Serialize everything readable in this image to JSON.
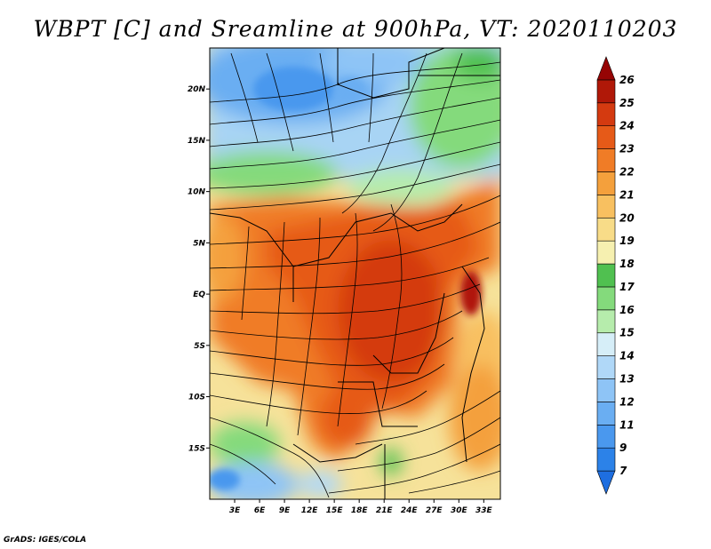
{
  "title": "WBPT [C] and Sreamline at 900hPa, VT: 2020110203",
  "credit": "GrADS: IGES/COLA",
  "map": {
    "lon_ticks": [
      "3E",
      "6E",
      "9E",
      "12E",
      "15E",
      "18E",
      "21E",
      "24E",
      "27E",
      "30E",
      "33E"
    ],
    "lon_values": [
      3,
      6,
      9,
      12,
      15,
      18,
      21,
      24,
      27,
      30,
      33
    ],
    "lat_ticks": [
      "20N",
      "15N",
      "10N",
      "5N",
      "EQ",
      "5S",
      "10S",
      "15S"
    ],
    "lat_values": [
      20,
      15,
      10,
      5,
      0,
      -5,
      -10,
      -15
    ],
    "lon_range": [
      0,
      35
    ],
    "lat_range": [
      -20,
      24
    ]
  },
  "colorbar": {
    "labels": [
      "7",
      "9",
      "11",
      "12",
      "13",
      "14",
      "15",
      "16",
      "17",
      "18",
      "19",
      "20",
      "21",
      "22",
      "23",
      "24",
      "25",
      "26"
    ],
    "colors": [
      "#1e6ee0",
      "#2c82e8",
      "#4a98ee",
      "#6aaef2",
      "#8ec4f6",
      "#b0d8f8",
      "#d6eef8",
      "#b6ecac",
      "#84da7c",
      "#50c050",
      "#f6f0b0",
      "#f8dc88",
      "#f8c060",
      "#f4a03c",
      "#f07c26",
      "#e65a18",
      "#d43a10",
      "#b01808",
      "#960404"
    ]
  }
}
